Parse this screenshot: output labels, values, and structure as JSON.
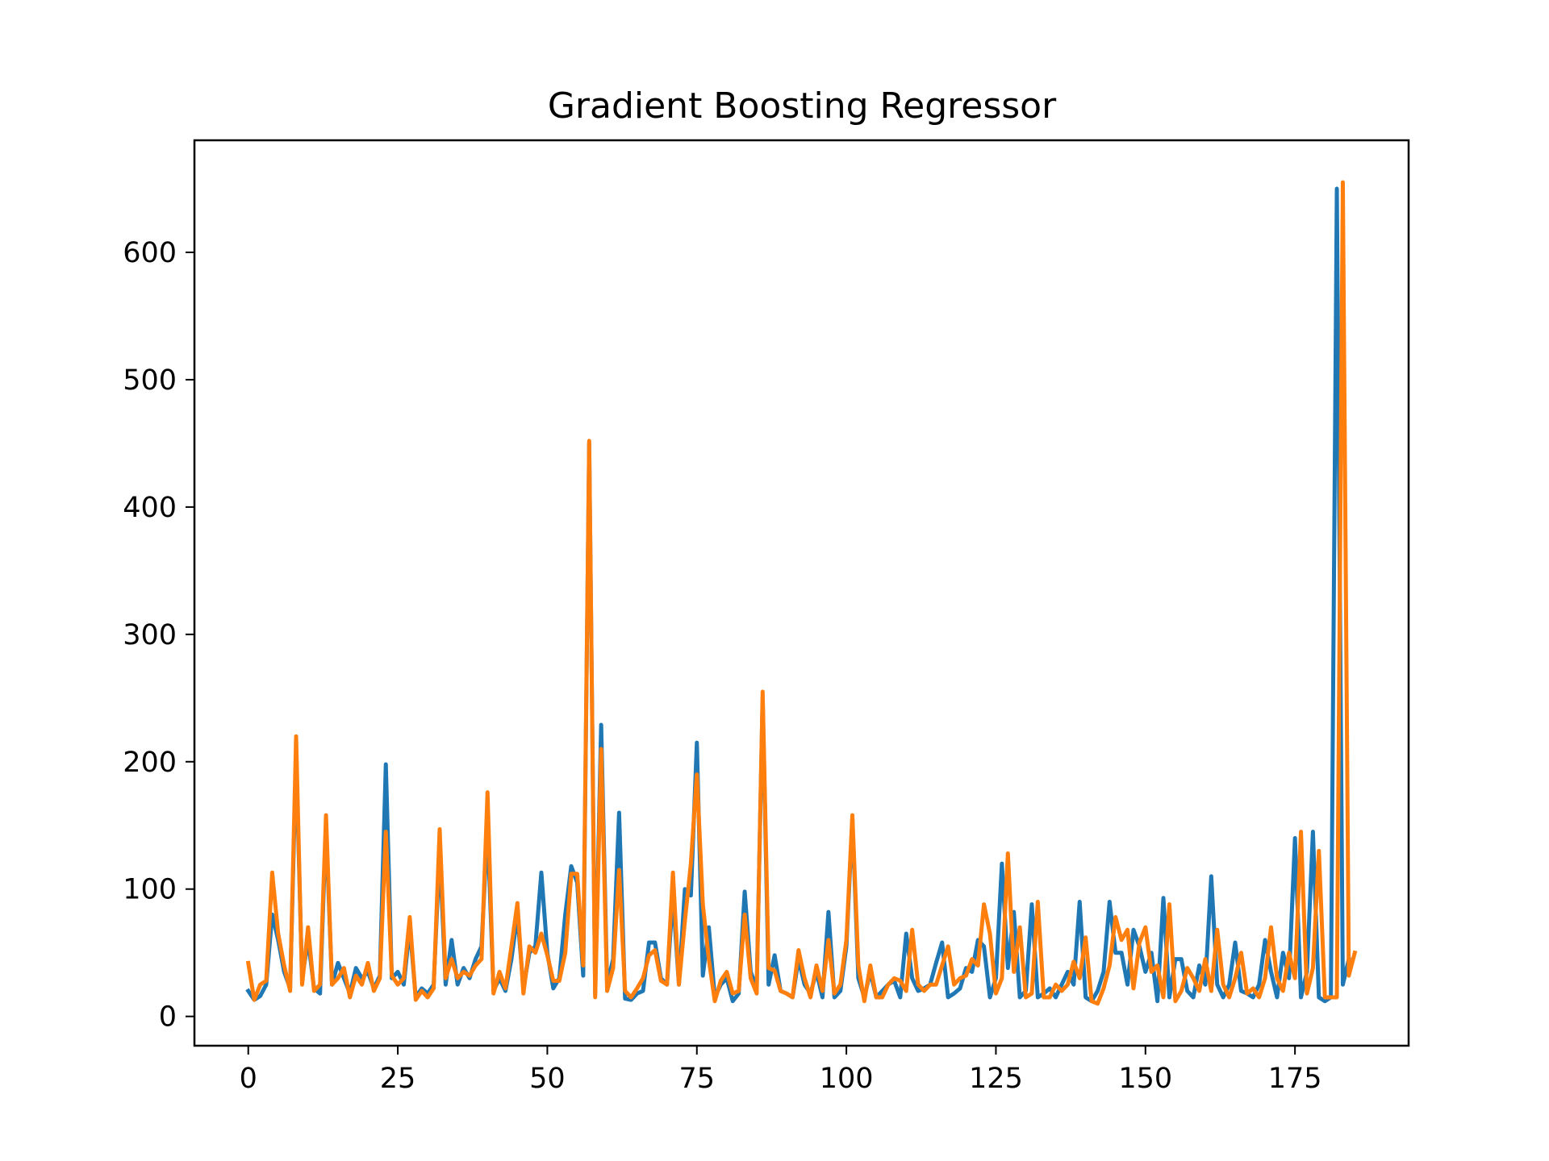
{
  "colors": {
    "series_0": "#1f77b4",
    "series_1": "#ff7f0e"
  },
  "chart_data": {
    "type": "line",
    "title": "Gradient Boosting Regressor",
    "xlabel": "",
    "ylabel": "",
    "xlim": [
      -9,
      194
    ],
    "ylim": [
      -23,
      688
    ],
    "xticks": [
      0,
      25,
      50,
      75,
      100,
      125,
      150,
      175
    ],
    "xtick_labels": [
      "0",
      "25",
      "50",
      "75",
      "100",
      "125",
      "150",
      "175"
    ],
    "yticks": [
      0,
      100,
      200,
      300,
      400,
      500,
      600
    ],
    "ytick_labels": [
      "0",
      "100",
      "200",
      "300",
      "400",
      "500",
      "600"
    ],
    "grid": false,
    "legend": "none",
    "x_start": 0,
    "x_step": 1,
    "series": [
      {
        "color": "#1f77b4",
        "values": [
          20,
          13,
          16,
          25,
          80,
          60,
          35,
          22,
          205,
          30,
          60,
          22,
          18,
          150,
          25,
          42,
          30,
          18,
          38,
          30,
          35,
          22,
          32,
          198,
          30,
          35,
          25,
          70,
          15,
          22,
          18,
          25,
          130,
          25,
          60,
          25,
          38,
          30,
          45,
          55,
          150,
          20,
          30,
          20,
          45,
          80,
          22,
          50,
          55,
          113,
          50,
          22,
          30,
          80,
          118,
          105,
          32,
          450,
          18,
          229,
          25,
          45,
          160,
          14,
          13,
          18,
          20,
          58,
          58,
          30,
          25,
          95,
          25,
          100,
          95,
          215,
          32,
          70,
          15,
          25,
          30,
          12,
          18,
          98,
          35,
          22,
          250,
          25,
          48,
          20,
          18,
          15,
          45,
          25,
          18,
          35,
          15,
          82,
          15,
          20,
          55,
          155,
          30,
          15,
          35,
          15,
          20,
          25,
          28,
          15,
          65,
          30,
          20,
          22,
          25,
          42,
          58,
          15,
          18,
          22,
          38,
          35,
          60,
          55,
          15,
          30,
          120,
          38,
          82,
          15,
          20,
          88,
          15,
          18,
          22,
          15,
          25,
          35,
          25,
          90,
          15,
          12,
          20,
          35,
          90,
          50,
          50,
          25,
          68,
          55,
          35,
          50,
          12,
          93,
          15,
          45,
          45,
          20,
          15,
          40,
          25,
          110,
          25,
          15,
          25,
          58,
          20,
          18,
          15,
          25,
          60,
          35,
          15,
          50,
          30,
          140,
          15,
          35,
          145,
          15,
          12,
          15,
          650,
          25,
          45
        ]
      },
      {
        "color": "#ff7f0e",
        "values": [
          42,
          13,
          25,
          28,
          113,
          65,
          40,
          20,
          220,
          25,
          70,
          20,
          25,
          158,
          25,
          30,
          38,
          15,
          32,
          25,
          42,
          20,
          30,
          145,
          32,
          25,
          30,
          78,
          13,
          20,
          15,
          22,
          147,
          30,
          45,
          30,
          35,
          32,
          40,
          45,
          176,
          18,
          35,
          22,
          55,
          89,
          18,
          55,
          50,
          65,
          48,
          28,
          28,
          50,
          112,
          112,
          40,
          452,
          15,
          210,
          20,
          38,
          115,
          20,
          15,
          22,
          30,
          48,
          52,
          28,
          25,
          113,
          25,
          75,
          120,
          190,
          88,
          45,
          12,
          28,
          35,
          18,
          20,
          80,
          30,
          18,
          255,
          38,
          36,
          20,
          18,
          15,
          52,
          30,
          15,
          40,
          20,
          60,
          18,
          25,
          60,
          158,
          40,
          12,
          40,
          15,
          15,
          25,
          30,
          28,
          20,
          68,
          25,
          20,
          25,
          25,
          40,
          55,
          25,
          30,
          32,
          45,
          40,
          88,
          65,
          18,
          30,
          128,
          35,
          70,
          15,
          18,
          90,
          15,
          15,
          25,
          20,
          25,
          43,
          30,
          62,
          12,
          10,
          22,
          40,
          78,
          60,
          68,
          22,
          58,
          70,
          35,
          40,
          15,
          88,
          12,
          20,
          38,
          30,
          20,
          45,
          20,
          68,
          25,
          15,
          30,
          50,
          18,
          22,
          15,
          30,
          70,
          30,
          20,
          50,
          30,
          145,
          18,
          38,
          130,
          15,
          15,
          15,
          655,
          32,
          50
        ]
      }
    ]
  }
}
